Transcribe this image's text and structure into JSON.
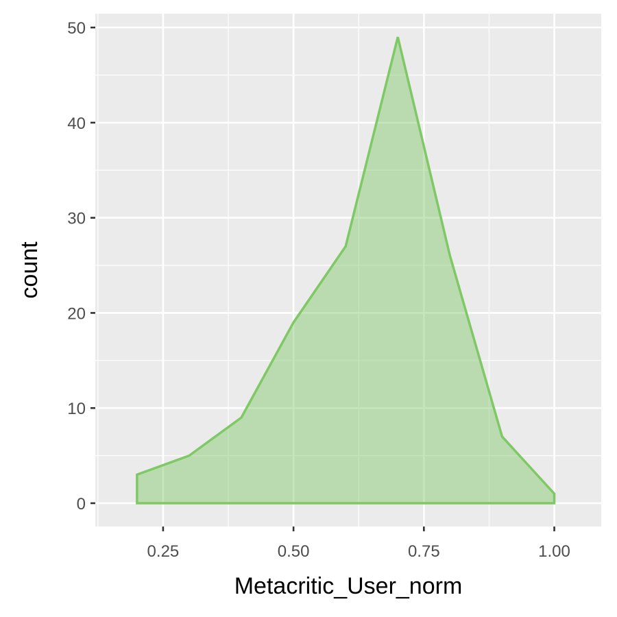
{
  "chart_data": {
    "type": "area",
    "title": "",
    "xlabel": "Metacritic_User_norm",
    "ylabel": "count",
    "xlim": [
      0.12,
      1.09
    ],
    "ylim": [
      -2.45,
      51.45
    ],
    "grid": true,
    "x_ticks": [
      0.25,
      0.5,
      0.75,
      1.0
    ],
    "x_tick_labels": [
      "0.25",
      "0.50",
      "0.75",
      "1.00"
    ],
    "y_ticks": [
      0,
      10,
      20,
      30,
      40,
      50
    ],
    "y_tick_labels": [
      "0",
      "10",
      "20",
      "30",
      "40",
      "50"
    ],
    "series": [
      {
        "x": [
          0.2,
          0.3,
          0.4,
          0.5,
          0.6,
          0.7,
          0.8,
          0.9,
          1.0
        ],
        "y": [
          3,
          5,
          9,
          19,
          27,
          49,
          26,
          7,
          1
        ],
        "color": "#7fc866"
      }
    ]
  }
}
